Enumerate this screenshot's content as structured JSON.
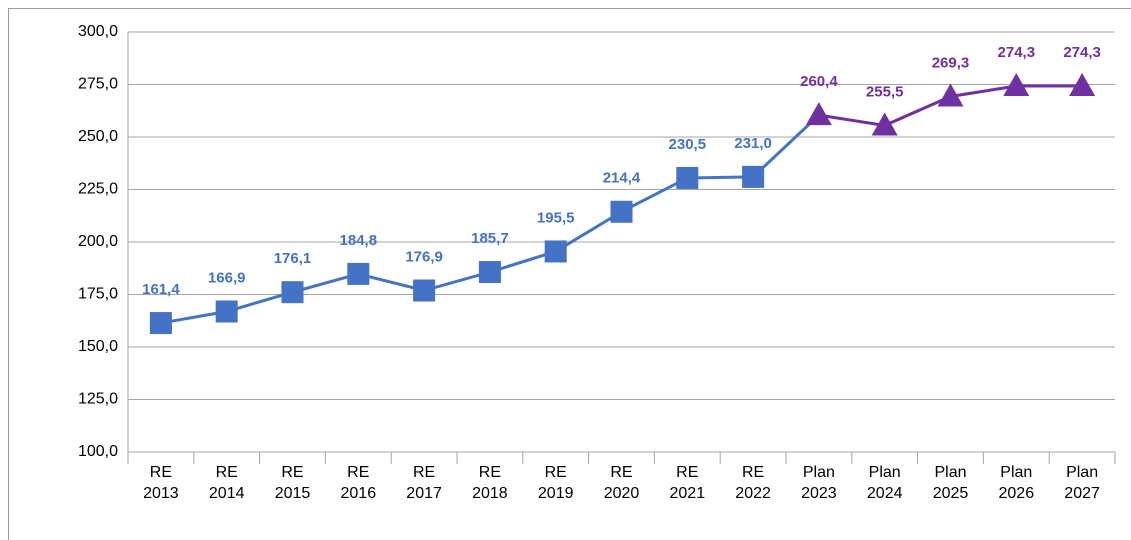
{
  "chart_data": {
    "type": "line",
    "categories": [
      "RE\n2013",
      "RE\n2014",
      "RE\n2015",
      "RE\n2016",
      "RE\n2017",
      "RE\n2018",
      "RE\n2019",
      "RE\n2020",
      "RE\n2021",
      "RE\n2022",
      "Plan\n2023",
      "Plan\n2024",
      "Plan\n2025",
      "Plan\n2026",
      "Plan\n2027"
    ],
    "series": [
      {
        "color": "#4472c4",
        "marker": "square",
        "values": [
          161.4,
          166.9,
          176.1,
          184.8,
          176.9,
          185.7,
          195.5,
          214.4,
          230.5,
          231.0,
          null,
          null,
          null,
          null,
          null
        ],
        "value_labels": [
          "161,4",
          "166,9",
          "176,1",
          "184,8",
          "176,9",
          "185,7",
          "195,5",
          "214,4",
          "230,5",
          "231,0",
          null,
          null,
          null,
          null,
          null
        ]
      },
      {
        "color": "#7030a0",
        "marker": "triangle",
        "values": [
          null,
          null,
          null,
          null,
          null,
          null,
          null,
          null,
          null,
          null,
          260.4,
          255.5,
          269.3,
          274.3,
          274.3
        ],
        "value_labels": [
          null,
          null,
          null,
          null,
          null,
          null,
          null,
          null,
          null,
          null,
          "260,4",
          "255,5",
          "269,3",
          "274,3",
          "274,3"
        ]
      }
    ],
    "ylim": [
      100,
      300
    ],
    "yticks": [
      {
        "value": 100,
        "label": "100,0"
      },
      {
        "value": 125,
        "label": "125,0"
      },
      {
        "value": 150,
        "label": "150,0"
      },
      {
        "value": 175,
        "label": "175,0"
      },
      {
        "value": 200,
        "label": "200,0"
      },
      {
        "value": 225,
        "label": "225,0"
      },
      {
        "value": 250,
        "label": "250,0"
      },
      {
        "value": 275,
        "label": "275,0"
      },
      {
        "value": 300,
        "label": "300,0"
      }
    ],
    "grid": true
  }
}
